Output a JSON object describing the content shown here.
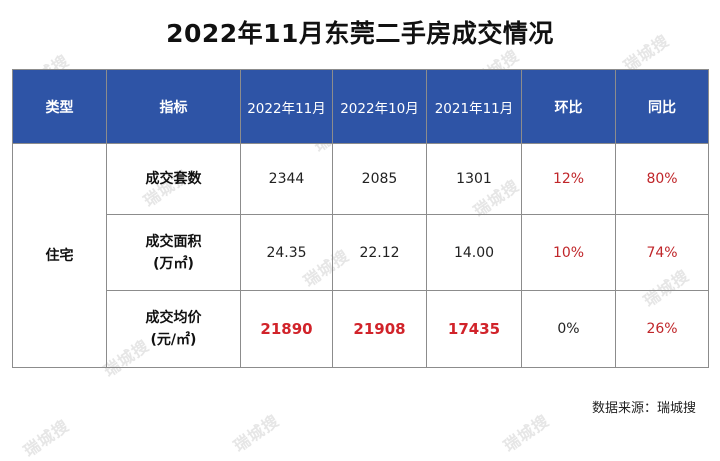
{
  "title": "2022年11月东莞二手房成交情况",
  "headers": [
    "类型",
    "指标",
    "2022年11月",
    "2022年10月",
    "2021年11月",
    "环比",
    "同比"
  ],
  "category": "住宅",
  "rows": [
    {
      "metric": [
        "成交套数"
      ],
      "values": [
        "2344",
        "2085",
        "1301"
      ],
      "mom": "12%",
      "yoy": "80%"
    },
    {
      "metric": [
        "成交面积",
        "(万㎡)"
      ],
      "values": [
        "24.35",
        "22.12",
        "14.00"
      ],
      "mom": "10%",
      "yoy": "74%"
    },
    {
      "metric": [
        "成交均价",
        "(元/㎡)"
      ],
      "values": [
        "21890",
        "21908",
        "17435"
      ],
      "mom": "0%",
      "yoy": "26%"
    }
  ],
  "source": "数据来源：瑞城搜",
  "watermark": "瑞城搜",
  "colors": {
    "header_bg": "#2e54a6",
    "highlight_red": "#d1232a",
    "percent_red": "#c0262a"
  }
}
